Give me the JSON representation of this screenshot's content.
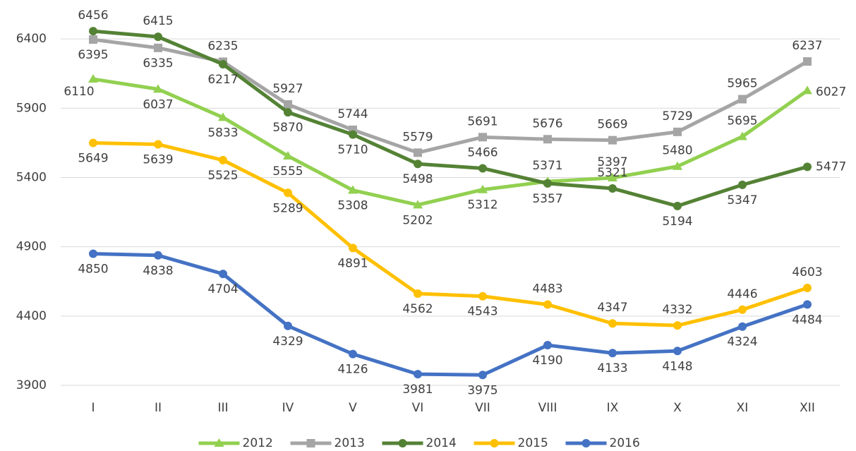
{
  "chart_data": {
    "type": "line",
    "categories": [
      "I",
      "II",
      "III",
      "IV",
      "V",
      "VI",
      "VII",
      "VIII",
      "IX",
      "X",
      "XI",
      "XII"
    ],
    "series": [
      {
        "name": "2012",
        "color": "#92d050",
        "marker": "triangle",
        "values": [
          6110,
          6037,
          5833,
          5555,
          5308,
          5202,
          5312,
          5371,
          5397,
          5480,
          5695,
          6027
        ]
      },
      {
        "name": "2013",
        "color": "#a5a5a5",
        "marker": "square",
        "values": [
          6395,
          6335,
          6235,
          5927,
          5744,
          5579,
          5691,
          5676,
          5669,
          5729,
          5965,
          6237
        ]
      },
      {
        "name": "2014",
        "color": "#548235",
        "marker": "circle",
        "values": [
          6456,
          6415,
          6217,
          5870,
          5710,
          5498,
          5466,
          5357,
          5321,
          5194,
          5347,
          5477
        ]
      },
      {
        "name": "2015",
        "color": "#ffc000",
        "marker": "circle",
        "values": [
          5649,
          5639,
          5525,
          5289,
          4891,
          4562,
          4543,
          4483,
          4347,
          4332,
          4446,
          4603
        ]
      },
      {
        "name": "2016",
        "color": "#4472c4",
        "marker": "circle",
        "values": [
          4850,
          4838,
          4704,
          4329,
          4126,
          3981,
          3975,
          4190,
          4133,
          4148,
          4324,
          4484
        ]
      }
    ],
    "ylim": [
      3900,
      6650
    ],
    "yticks": [
      3900,
      4400,
      4900,
      5400,
      5900,
      6400
    ],
    "grid": true,
    "legend": "bottom"
  }
}
